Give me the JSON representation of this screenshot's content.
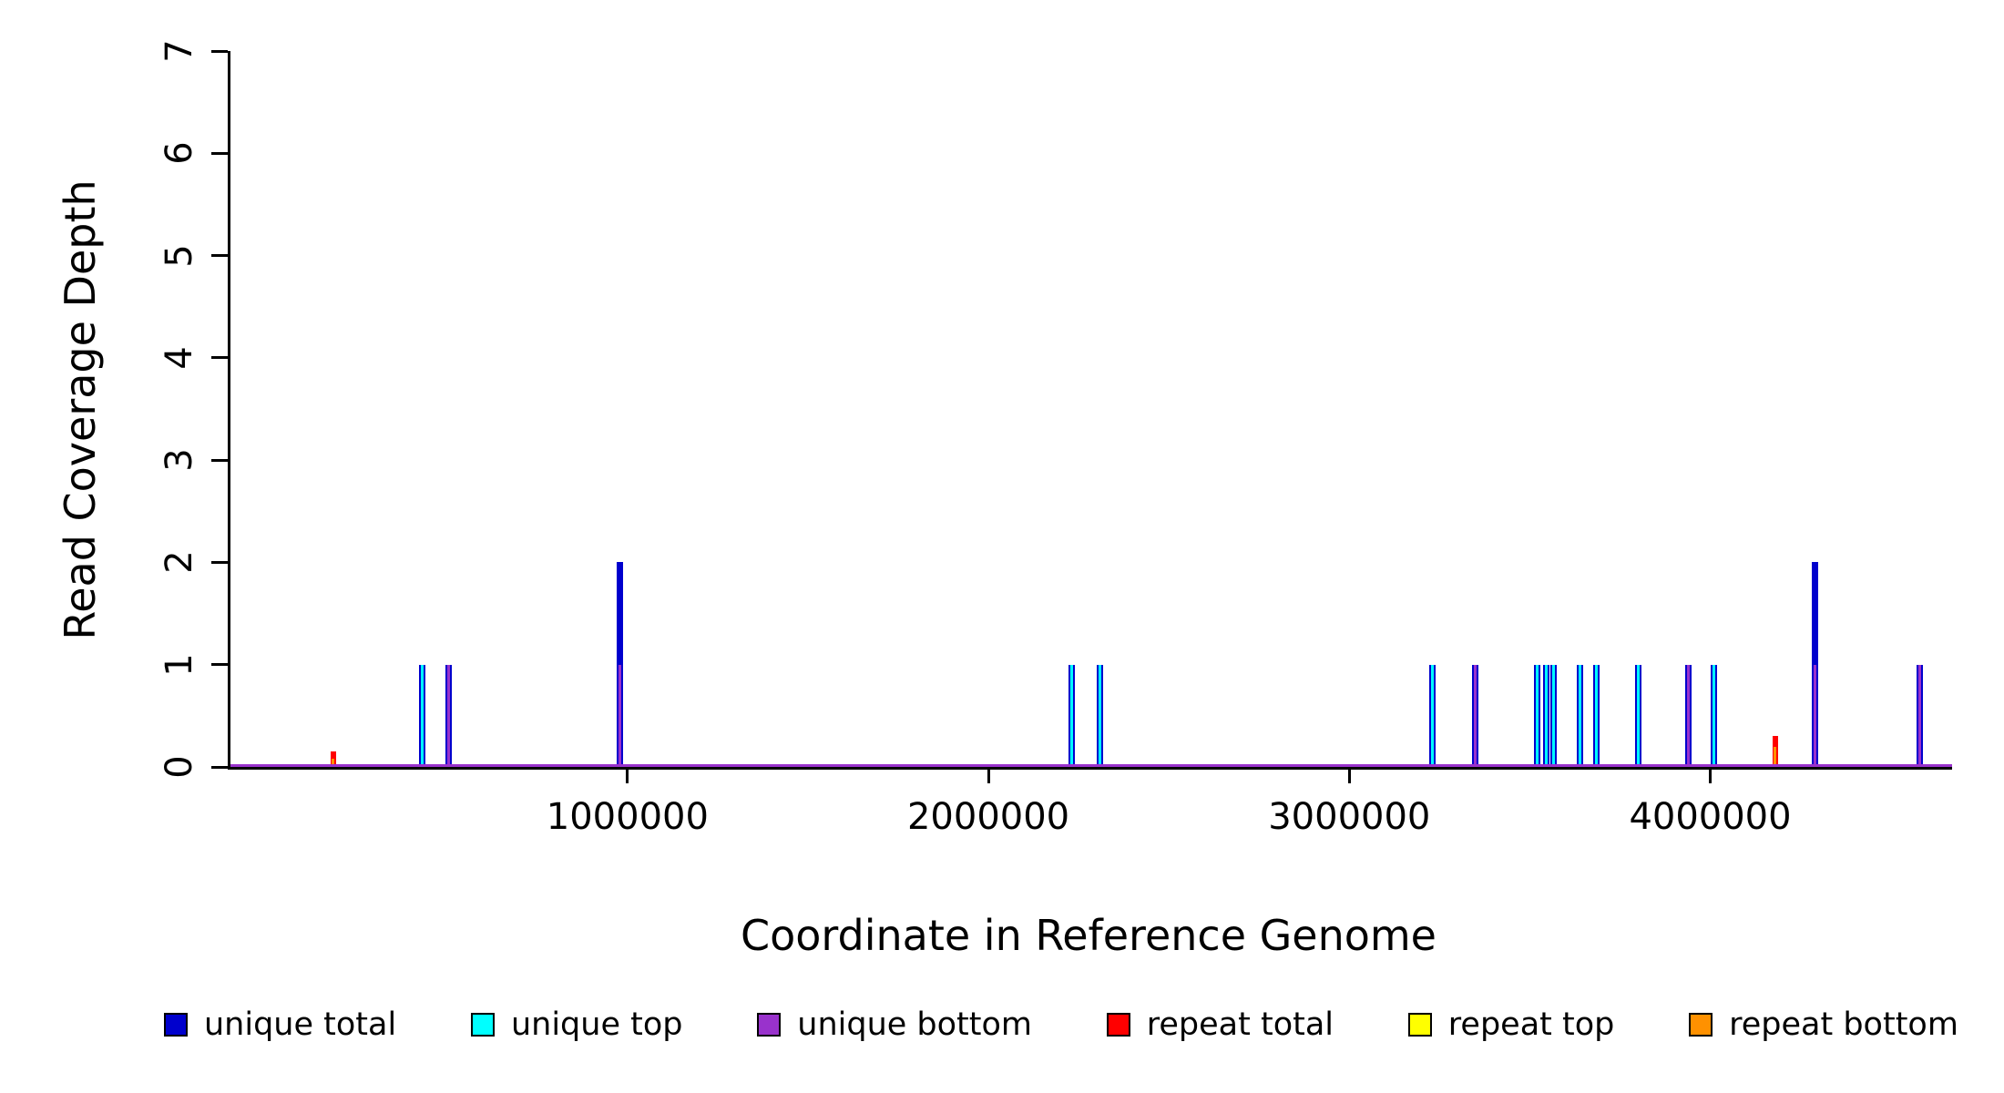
{
  "chart_data": {
    "type": "line",
    "title": "",
    "xlabel": "Coordinate in Reference Genome",
    "ylabel": "Read Coverage Depth",
    "xlim": [
      -100000,
      4670000
    ],
    "ylim": [
      0,
      7
    ],
    "yticks": [
      0,
      1,
      2,
      3,
      4,
      5,
      6,
      7
    ],
    "xticks": [
      {
        "value": 1000000,
        "label": "1000000"
      },
      {
        "value": 2000000,
        "label": "2000000"
      },
      {
        "value": 3000000,
        "label": "3000000"
      },
      {
        "value": 4000000,
        "label": "4000000"
      }
    ],
    "grid": false,
    "legend_position": "bottom",
    "series_colors": {
      "unique_total": "#0000CD",
      "unique_top": "#00FFFF",
      "unique_bottom": "#9932CC",
      "repeat_total": "#FF0000",
      "repeat_top": "#FFFF00",
      "repeat_bottom": "#FF9100"
    },
    "legend": [
      {
        "key": "unique_total",
        "label": "unique total"
      },
      {
        "key": "unique_top",
        "label": "unique top"
      },
      {
        "key": "unique_bottom",
        "label": "unique bottom"
      },
      {
        "key": "repeat_total",
        "label": "repeat total"
      },
      {
        "key": "repeat_top",
        "label": "repeat top"
      },
      {
        "key": "repeat_bottom",
        "label": "repeat bottom"
      }
    ],
    "baseline": {
      "y": 0,
      "color": "#9932CC"
    },
    "spikes": [
      {
        "x": 185000,
        "repeat_total": 0.15,
        "repeat_bottom": 0.08
      },
      {
        "x": 430000,
        "unique_total": 1,
        "unique_top": 1
      },
      {
        "x": 505000,
        "unique_total": 1,
        "unique_bottom": 1
      },
      {
        "x": 980000,
        "unique_total": 2,
        "unique_top": 1,
        "unique_bottom": 1
      },
      {
        "x": 2230000,
        "unique_total": 1,
        "unique_top": 1
      },
      {
        "x": 2310000,
        "unique_total": 1,
        "unique_top": 1
      },
      {
        "x": 3230000,
        "unique_total": 1,
        "unique_top": 1
      },
      {
        "x": 3350000,
        "unique_total": 1,
        "unique_bottom": 1
      },
      {
        "x": 3520000,
        "unique_total": 1,
        "unique_top": 1
      },
      {
        "x": 3545000,
        "unique_total": 1,
        "unique_top": 1
      },
      {
        "x": 3565000,
        "unique_total": 1,
        "unique_top": 1
      },
      {
        "x": 3640000,
        "unique_total": 1,
        "unique_top": 1
      },
      {
        "x": 3685000,
        "unique_total": 1,
        "unique_top": 1
      },
      {
        "x": 3800000,
        "unique_total": 1,
        "unique_top": 1
      },
      {
        "x": 3940000,
        "unique_total": 1,
        "unique_bottom": 1
      },
      {
        "x": 4010000,
        "unique_total": 1,
        "unique_top": 1
      },
      {
        "x": 4180000,
        "repeat_total": 0.3,
        "repeat_bottom": 0.2
      },
      {
        "x": 4290000,
        "unique_total": 2,
        "unique_top": 1,
        "unique_bottom": 1
      },
      {
        "x": 4580000,
        "unique_total": 1,
        "unique_bottom": 1
      }
    ]
  }
}
